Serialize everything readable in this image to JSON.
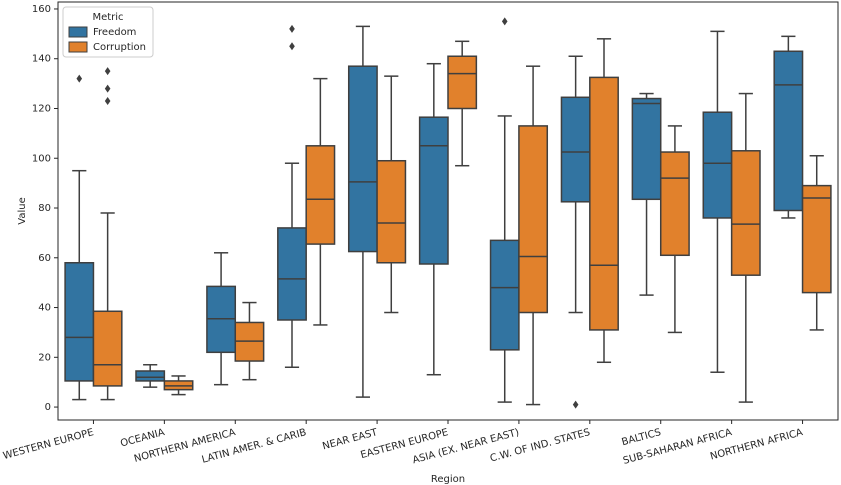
{
  "chart_data": {
    "type": "box",
    "x_label": "Region",
    "y_label": "Value",
    "legend_title": "Metric",
    "legend_position": "upper-left",
    "categories": [
      "WESTERN EUROPE",
      "OCEANIA",
      "NORTHERN AMERICA",
      "LATIN AMER. & CARIB",
      "NEAR EAST",
      "EASTERN EUROPE",
      "ASIA (EX. NEAR EAST)",
      "C.W. OF IND. STATES",
      "BALTICS",
      "SUB-SAHARAN AFRICA",
      "NORTHERN AFRICA"
    ],
    "ylim": [
      -5.2,
      162.8
    ],
    "yticks": [
      0,
      20,
      40,
      60,
      80,
      100,
      120,
      140,
      160
    ],
    "series": [
      {
        "name": "Freedom",
        "color": "#3274a1",
        "min": [
          3,
          8,
          9,
          16,
          4,
          13,
          2,
          38,
          45,
          14,
          76
        ],
        "q1": [
          10.5,
          10.5,
          22,
          35,
          62.5,
          57.5,
          23,
          82.5,
          83.5,
          76,
          79
        ],
        "median": [
          28,
          12,
          35.5,
          51.5,
          90.5,
          105,
          48,
          102.5,
          122,
          98,
          129.5
        ],
        "q3": [
          58,
          14.5,
          48.5,
          72,
          137,
          116.5,
          67,
          124.5,
          124,
          118.5,
          143
        ],
        "max": [
          95,
          17,
          62,
          98,
          153,
          138,
          117,
          141,
          126,
          151,
          149
        ],
        "outliers": [
          [
            132
          ],
          [],
          [],
          [
            145,
            152
          ],
          [],
          [],
          [
            155
          ],
          [
            1
          ],
          [],
          [],
          []
        ]
      },
      {
        "name": "Corruption",
        "color": "#e1812c",
        "min": [
          3,
          5,
          11,
          33,
          38,
          97,
          1,
          18,
          30,
          2,
          31
        ],
        "q1": [
          8.5,
          7,
          18.5,
          65.5,
          58,
          120,
          38,
          31,
          61,
          53,
          46
        ],
        "median": [
          17,
          8.5,
          26.5,
          83.5,
          74,
          134,
          60.5,
          57,
          92,
          73.5,
          84
        ],
        "q3": [
          38.5,
          10.5,
          34,
          105,
          99,
          141,
          113,
          132.5,
          102.5,
          103,
          89
        ],
        "max": [
          78,
          12.5,
          42,
          132,
          133,
          147,
          137,
          148,
          113,
          126,
          101
        ],
        "outliers": [
          [
            135,
            128,
            123
          ],
          [],
          [],
          [],
          [],
          [],
          [],
          [],
          [],
          [],
          []
        ]
      }
    ]
  }
}
